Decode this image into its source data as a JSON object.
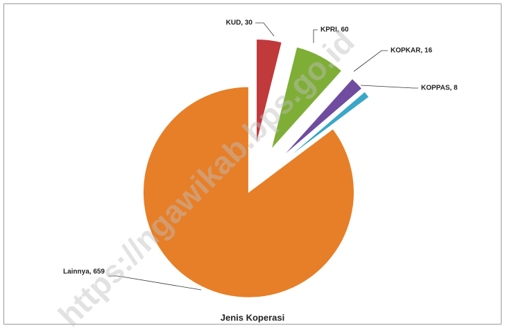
{
  "chart_data": {
    "type": "pie",
    "title": "Jenis Koperasi",
    "categories": [
      "KUD",
      "KPRI",
      "KOPKAR",
      "KOPPAS",
      "Lainnya"
    ],
    "values": [
      30,
      60,
      16,
      8,
      659
    ],
    "value_labels": [
      "KUD,  30",
      "KPRI,  60",
      "KOPKAR,  16",
      "KOPPAS,  8",
      "Lainnya,  659"
    ],
    "colors": [
      "#c0393b",
      "#7fae37",
      "#6f4c9f",
      "#3ba7c7",
      "#e67f28"
    ],
    "watermark": "https://ngawikab.bps.go.id"
  }
}
